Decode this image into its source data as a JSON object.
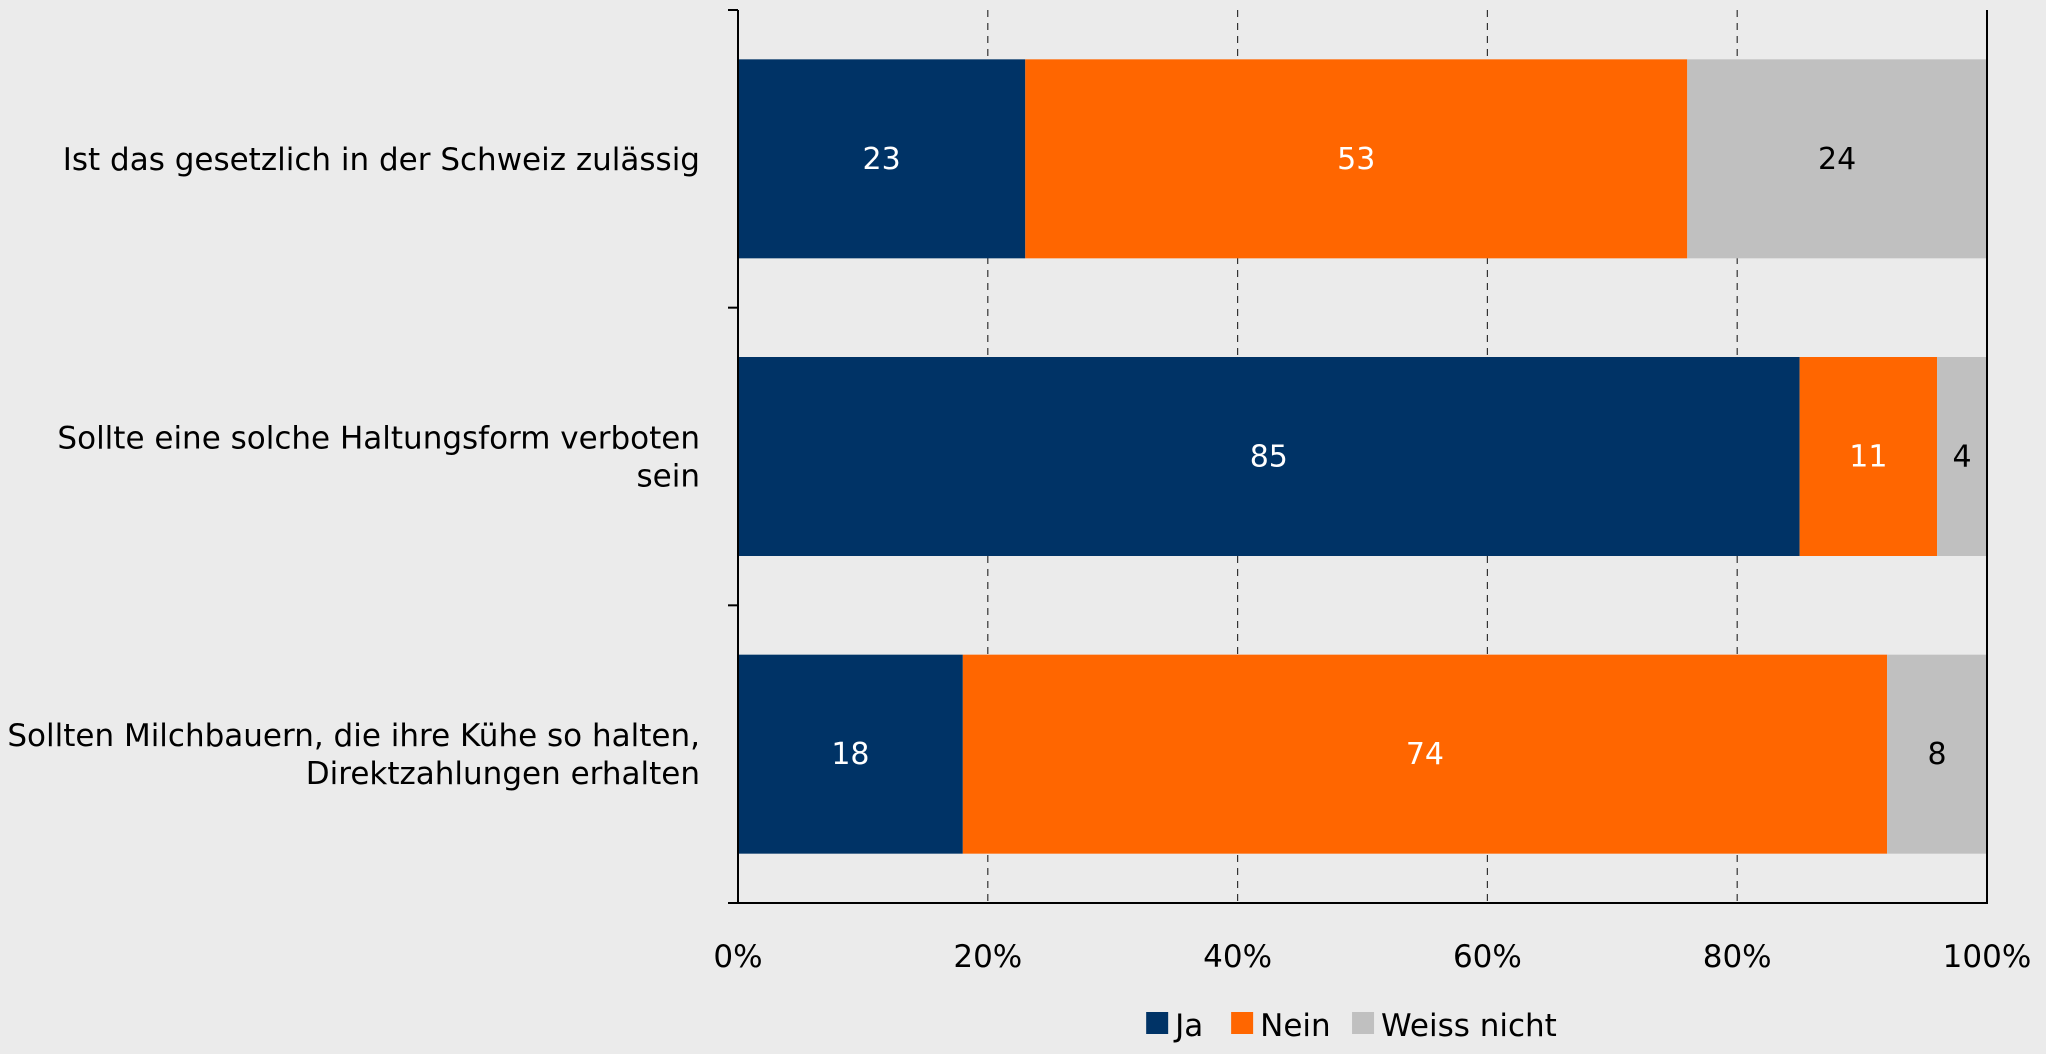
{
  "chart_data": {
    "type": "bar",
    "orientation": "horizontal",
    "stacked": "percent",
    "categories": [
      [
        "Ist das gesetzlich in der Schweiz zulässig"
      ],
      [
        "Sollte eine solche Haltungsform verboten",
        "sein"
      ],
      [
        "Sollten Milchbauern, die ihre Kühe so halten,",
        "Direktzahlungen erhalten"
      ]
    ],
    "series": [
      {
        "name": "Ja",
        "color": "#003366",
        "label_color": "#ffffff",
        "values": [
          23,
          85,
          18
        ]
      },
      {
        "name": "Nein",
        "color": "#ff6600",
        "label_color": "#ffffff",
        "values": [
          53,
          11,
          74
        ]
      },
      {
        "name": "Weiss nicht",
        "color": "#c0c0c0",
        "label_color": "#000000",
        "values": [
          24,
          4,
          8
        ]
      }
    ],
    "xlim": [
      0,
      100
    ],
    "xticks": [
      "0%",
      "20%",
      "40%",
      "60%",
      "80%",
      "100%"
    ],
    "grid": "vertical dashed",
    "legend": "bottom-center"
  }
}
